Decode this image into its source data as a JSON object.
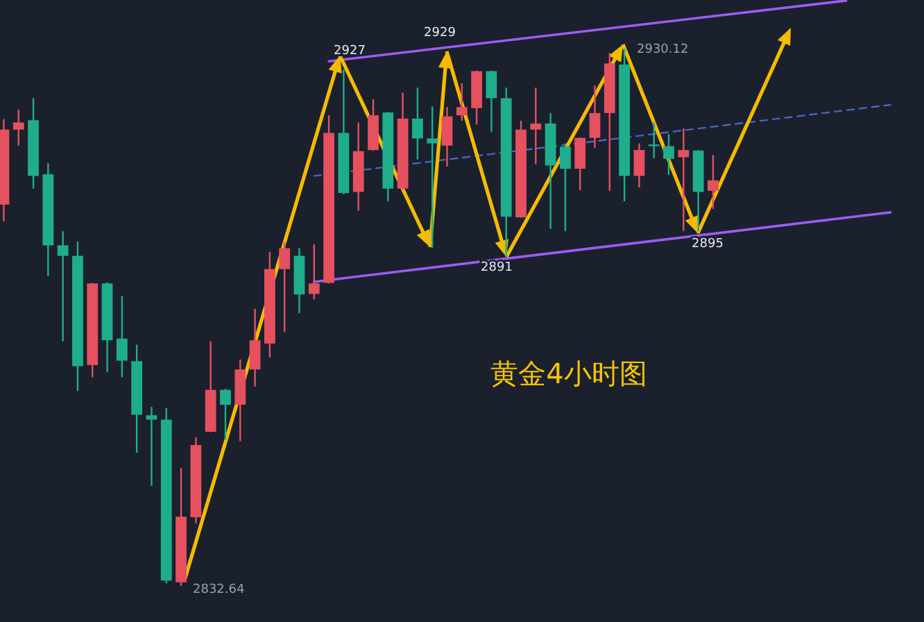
{
  "chart_data": {
    "type": "candlestick",
    "categories": [
      null,
      null,
      null,
      null,
      null,
      null,
      null,
      null,
      null,
      null,
      null,
      null,
      null,
      null,
      null,
      null,
      null,
      null,
      null,
      null,
      null,
      null,
      null,
      null,
      null,
      null,
      null,
      null,
      null,
      null,
      null,
      null,
      null,
      null,
      null,
      null,
      null,
      null,
      null,
      null,
      null,
      null,
      null,
      null,
      null,
      null,
      null,
      null,
      null,
      null,
      null,
      null,
      null,
      null,
      null,
      null,
      null,
      null,
      null,
      null,
      null,
      null,
      null
    ],
    "ohlc": [
      [
        2901.8,
        2917.3,
        2898.8,
        2915.4
      ],
      [
        2915.4,
        2919.0,
        2912.5,
        2916.7
      ],
      [
        2917.1,
        2921.1,
        2904.7,
        2907.0
      ],
      [
        2907.3,
        2909.3,
        2888.8,
        2894.4
      ],
      [
        2894.4,
        2897.0,
        2877.0,
        2892.5
      ],
      [
        2892.5,
        2895.1,
        2868.0,
        2872.5
      ],
      [
        2872.7,
        2887.6,
        2870.5,
        2887.5
      ],
      [
        2887.5,
        2887.7,
        2871.4,
        2877.2
      ],
      [
        2877.5,
        2885.2,
        2870.5,
        2873.5
      ],
      [
        2873.4,
        2876.4,
        2856.8,
        2863.7
      ],
      [
        2863.6,
        2865.1,
        2850.8,
        2862.8
      ],
      [
        2862.8,
        2864.9,
        2833.1,
        2833.6
      ],
      [
        2833.3,
        2854.0,
        2832.64,
        2845.2
      ],
      [
        2845.1,
        2859.6,
        2844.0,
        2858.2
      ],
      [
        2860.6,
        2877.0,
        2860.5,
        2868.2
      ],
      [
        2868.2,
        2868.4,
        2859.2,
        2865.5
      ],
      [
        2865.5,
        2873.7,
        2858.9,
        2871.9
      ],
      [
        2871.9,
        2882.9,
        2868.8,
        2877.2
      ],
      [
        2876.6,
        2893.2,
        2874.1,
        2890.1
      ],
      [
        2890.1,
        2895.0,
        2878.7,
        2893.9
      ],
      [
        2892.5,
        2893.9,
        2882.1,
        2885.5
      ],
      [
        2885.6,
        2894.6,
        2884.6,
        2887.5
      ],
      [
        2887.6,
        2918.0,
        2887.5,
        2914.8
      ],
      [
        2914.8,
        2926.3,
        2903.7,
        2903.9
      ],
      [
        2904.1,
        2916.7,
        2900.7,
        2911.5
      ],
      [
        2911.7,
        2920.9,
        2911.6,
        2918.0
      ],
      [
        2918.5,
        2918.6,
        2902.4,
        2904.7
      ],
      [
        2904.7,
        2922.1,
        2904.5,
        2917.4
      ],
      [
        2917.4,
        2923.0,
        2910.0,
        2913.8
      ],
      [
        2913.8,
        2919.6,
        2894.0,
        2912.9
      ],
      [
        2912.5,
        2919.5,
        2908.7,
        2917.8
      ],
      [
        2918.0,
        2923.8,
        2917.0,
        2919.5
      ],
      [
        2919.3,
        2926.1,
        2916.3,
        2926.0
      ],
      [
        2926.0,
        2926.1,
        2915.0,
        2921.1
      ],
      [
        2921.1,
        2923.0,
        2892.3,
        2899.6
      ],
      [
        2899.5,
        2917.0,
        2899.4,
        2915.4
      ],
      [
        2915.4,
        2923.0,
        2909.1,
        2916.5
      ],
      [
        2916.5,
        2918.4,
        2897.4,
        2908.9
      ],
      [
        2912.3,
        2912.9,
        2897.0,
        2908.3
      ],
      [
        2908.3,
        2914.0,
        2904.4,
        2913.9
      ],
      [
        2913.9,
        2923.4,
        2912.1,
        2918.4
      ],
      [
        2918.4,
        2929.3,
        2904.3,
        2927.4
      ],
      [
        2927.2,
        2930.12,
        2902.4,
        2907.0
      ],
      [
        2907.0,
        2912.9,
        2904.9,
        2911.7
      ],
      [
        2912.7,
        2916.7,
        2910.2,
        2912.4
      ],
      [
        2912.4,
        2914.6,
        2907.2,
        2910.1
      ],
      [
        2910.4,
        2915.6,
        2897.0,
        2911.7
      ],
      [
        2911.6,
        2911.7,
        2897.0,
        2904.1
      ],
      [
        2904.3,
        2910.8,
        2901.0,
        2906.2
      ],
      null,
      null,
      null,
      null,
      null,
      null,
      null,
      null,
      null,
      null,
      null,
      null,
      null,
      null
    ],
    "colors": [
      "#e5515f",
      "#e5515f",
      "#1fae8c",
      "#1fae8c",
      "#1fae8c",
      "#1fae8c",
      "#e5515f",
      "#1fae8c",
      "#1fae8c",
      "#1fae8c",
      "#1fae8c",
      "#1fae8c",
      "#e5515f",
      "#e5515f",
      "#e5515f",
      "#1fae8c",
      "#e5515f",
      "#e5515f",
      "#e5515f",
      "#e5515f",
      "#1fae8c",
      "#e5515f",
      "#e5515f",
      "#1fae8c",
      "#e5515f",
      "#e5515f",
      "#1fae8c",
      "#e5515f",
      "#1fae8c",
      "#1fae8c",
      "#e5515f",
      "#e5515f",
      "#e5515f",
      "#1fae8c",
      "#1fae8c",
      "#e5515f",
      "#e5515f",
      "#1fae8c",
      "#1fae8c",
      "#e5515f",
      "#e5515f",
      "#e5515f",
      "#1fae8c",
      "#e5515f",
      "#1fae8c",
      "#1fae8c",
      "#e5515f",
      "#1fae8c",
      "#e5515f",
      null,
      null,
      null,
      null,
      null,
      null,
      null,
      null,
      null,
      null,
      null,
      null,
      null,
      null
    ],
    "series": [
      {
        "type": "line",
        "color": "#9d5cf2",
        "values": [
          null,
          null,
          null,
          null,
          null,
          null,
          null,
          null,
          null,
          null,
          null,
          null,
          null,
          null,
          null,
          null,
          null,
          null,
          null,
          null,
          null,
          null,
          2927.8,
          null,
          null,
          null,
          null,
          null,
          null,
          null,
          null,
          null,
          null,
          null,
          null,
          null,
          null,
          null,
          null,
          null,
          null,
          null,
          null,
          null,
          null,
          null,
          null,
          null,
          null,
          null,
          null,
          null,
          null,
          null,
          null,
          null,
          null,
          2938.8,
          null,
          null,
          null,
          null,
          null
        ]
      },
      {
        "type": "line",
        "color": "#9d5cf2",
        "values": [
          null,
          null,
          null,
          null,
          null,
          null,
          null,
          null,
          null,
          null,
          null,
          null,
          null,
          null,
          null,
          null,
          null,
          null,
          null,
          null,
          null,
          2887.8,
          null,
          null,
          null,
          null,
          null,
          null,
          null,
          null,
          null,
          null,
          null,
          null,
          null,
          null,
          null,
          null,
          null,
          null,
          null,
          null,
          null,
          null,
          null,
          null,
          null,
          null,
          null,
          null,
          null,
          null,
          null,
          null,
          null,
          null,
          null,
          null,
          null,
          null,
          2900.4,
          null,
          null
        ]
      },
      {
        "type": "line",
        "color": "#4b63c4",
        "line_style": "dashed",
        "values": [
          null,
          null,
          null,
          null,
          null,
          null,
          null,
          null,
          null,
          null,
          null,
          null,
          null,
          null,
          null,
          null,
          null,
          null,
          null,
          null,
          null,
          2907.0,
          null,
          null,
          null,
          null,
          null,
          null,
          null,
          null,
          null,
          null,
          null,
          null,
          null,
          null,
          null,
          null,
          null,
          null,
          null,
          null,
          null,
          null,
          null,
          null,
          null,
          null,
          null,
          null,
          null,
          null,
          null,
          null,
          null,
          null,
          null,
          null,
          null,
          null,
          2919.9,
          null,
          null
        ]
      }
    ],
    "annotations": [
      "黄金4小时图",
      "2927",
      "2929",
      "2891",
      "2895",
      "2832.64",
      "2930.12"
    ]
  }
}
